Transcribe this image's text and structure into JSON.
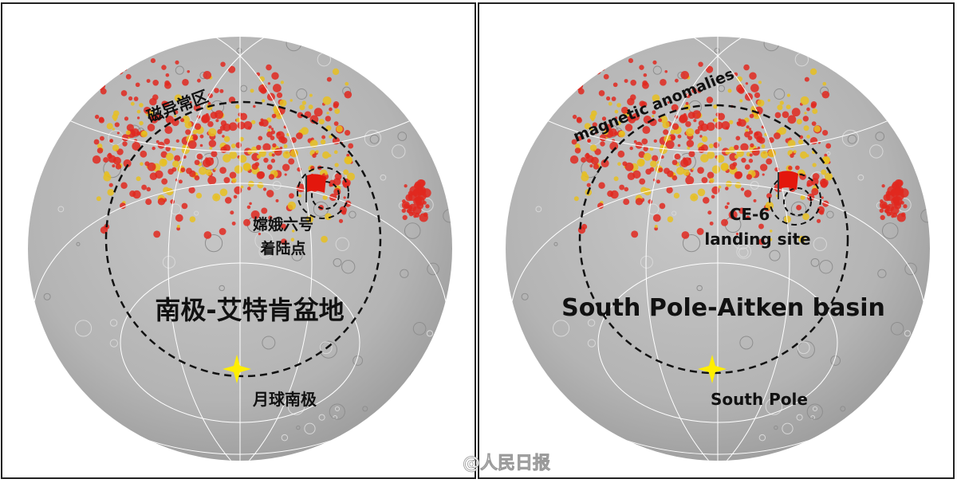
{
  "panels": [
    {
      "magnetic_label": "磁异常区",
      "landing_label": [
        "嫦娥六号",
        "着陆点"
      ],
      "basin_label": "南极-艾特肯盆地",
      "pole_label": "月球南极"
    },
    {
      "magnetic_label": "magnetic anomalies",
      "landing_label": [
        "CE-6",
        "landing site"
      ],
      "basin_label": "South Pole-Aitken basin",
      "pole_label": "South Pole"
    }
  ],
  "watermark": "@人民日报"
}
